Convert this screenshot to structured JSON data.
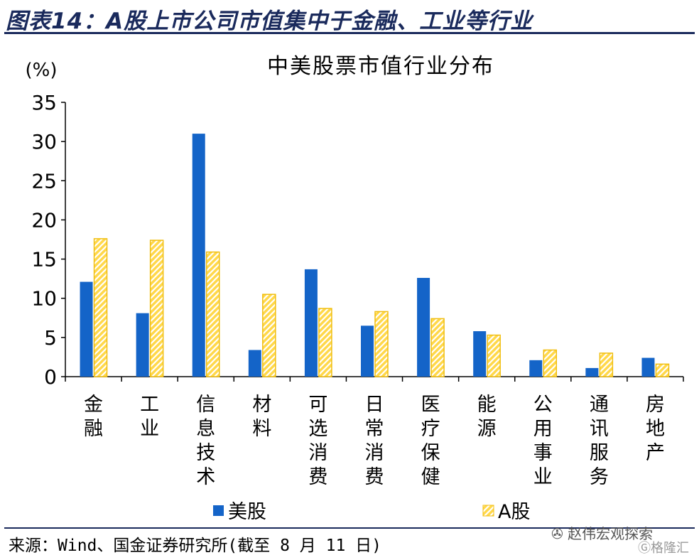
{
  "figure_title": "图表14：A股上市公司市值集中于金融、工业等行业",
  "source": "来源：Wind、国金证券研究所(截至 8 月 11 日)",
  "watermark": "赵伟宏观探索",
  "watermark_sub": "格隆汇",
  "colors": {
    "us": "#1464c8",
    "a_share_fill": "#ffd84a",
    "a_share_stripe": "#f3c21a",
    "title": "#1a2a5c"
  },
  "chart_data": {
    "type": "bar",
    "title": "中美股票市值行业分布",
    "ylabel": "(%)",
    "ylim": [
      0,
      35
    ],
    "yticks": [
      0,
      5,
      10,
      15,
      20,
      25,
      30,
      35
    ],
    "grid": false,
    "legend_position": "bottom",
    "categories": [
      "金融",
      "工业",
      "信息技术",
      "材料",
      "可选消费",
      "日常消费",
      "医疗保健",
      "能源",
      "公用事业",
      "通讯服务",
      "房地产"
    ],
    "series": [
      {
        "name": "美股",
        "values": [
          12.1,
          8.1,
          31.0,
          3.4,
          13.7,
          6.5,
          12.6,
          5.8,
          2.1,
          1.1,
          2.4
        ]
      },
      {
        "name": "A股",
        "values": [
          17.6,
          17.4,
          15.9,
          10.5,
          8.7,
          8.3,
          7.4,
          5.3,
          3.4,
          3.0,
          1.6
        ]
      }
    ]
  }
}
